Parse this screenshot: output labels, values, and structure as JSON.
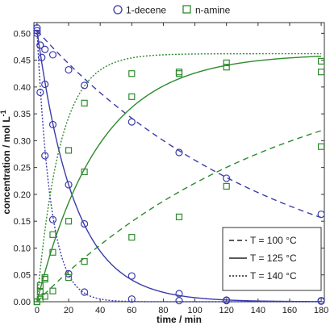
{
  "chart_data": {
    "type": "scatter",
    "xlabel": "time / min",
    "ylabel": "concentration / mol L",
    "ylabel_superscript": "-1",
    "xlim": [
      -2,
      182
    ],
    "ylim": [
      0,
      0.52
    ],
    "xticks": [
      "0",
      "20",
      "40",
      "60",
      "80",
      "100",
      "120",
      "140",
      "160",
      "180"
    ],
    "yticks": [
      "0.00",
      "0.05",
      "0.10",
      "0.15",
      "0.20",
      "0.25",
      "0.30",
      "0.35",
      "0.40",
      "0.45",
      "0.50"
    ],
    "grid": false,
    "legend_series_placement": "top",
    "legend_temperature_placement": "bottom-right",
    "series": [
      {
        "name": "1-decene",
        "marker": "circle",
        "color": "#3b3bab",
        "points": {
          "T100": [
            [
              0,
              0.51
            ],
            [
              2,
              0.478
            ],
            [
              5,
              0.47
            ],
            [
              10,
              0.46
            ],
            [
              20,
              0.432
            ],
            [
              30,
              0.403
            ],
            [
              60,
              0.335
            ],
            [
              90,
              0.278
            ],
            [
              120,
              0.23
            ],
            [
              180,
              0.163
            ]
          ],
          "T125": [
            [
              0,
              0.505
            ],
            [
              2,
              0.478
            ],
            [
              3,
              0.455
            ],
            [
              5,
              0.405
            ],
            [
              10,
              0.33
            ],
            [
              20,
              0.218
            ],
            [
              30,
              0.145
            ],
            [
              60,
              0.048
            ],
            [
              90,
              0.015
            ],
            [
              120,
              0.003
            ],
            [
              180,
              0.002
            ]
          ],
          "T140": [
            [
              0,
              0.5
            ],
            [
              2,
              0.39
            ],
            [
              5,
              0.272
            ],
            [
              10,
              0.153
            ],
            [
              20,
              0.052
            ],
            [
              30,
              0.018
            ],
            [
              60,
              0.005
            ],
            [
              90,
              0.002
            ],
            [
              120,
              0.002
            ],
            [
              180,
              0.001
            ]
          ]
        }
      },
      {
        "name": "n-amine",
        "marker": "square",
        "color": "#2e8b2e",
        "points": {
          "T100": [
            [
              0,
              0.0
            ],
            [
              2,
              0.005
            ],
            [
              5,
              0.01
            ],
            [
              10,
              0.02
            ],
            [
              20,
              0.045
            ],
            [
              30,
              0.075
            ],
            [
              60,
              0.12
            ],
            [
              90,
              0.158
            ],
            [
              120,
              0.215
            ],
            [
              180,
              0.289
            ]
          ],
          "T125": [
            [
              0,
              0.0
            ],
            [
              2,
              0.018
            ],
            [
              5,
              0.042
            ],
            [
              10,
              0.092
            ],
            [
              20,
              0.15
            ],
            [
              30,
              0.242
            ],
            [
              60,
              0.382
            ],
            [
              90,
              0.425
            ],
            [
              120,
              0.437
            ],
            [
              180,
              0.428
            ]
          ],
          "T140": [
            [
              0,
              0.0
            ],
            [
              2,
              0.03
            ],
            [
              5,
              0.045
            ],
            [
              10,
              0.125
            ],
            [
              20,
              0.282
            ],
            [
              30,
              0.37
            ],
            [
              60,
              0.425
            ],
            [
              90,
              0.428
            ],
            [
              120,
              0.445
            ],
            [
              180,
              0.448
            ]
          ]
        }
      }
    ],
    "temperature_legend": [
      {
        "label": "T = 100 °C",
        "line": "dashed"
      },
      {
        "label": "T = 125 °C",
        "line": "solid"
      },
      {
        "label": "T = 140 °C",
        "line": "dotted"
      }
    ]
  }
}
